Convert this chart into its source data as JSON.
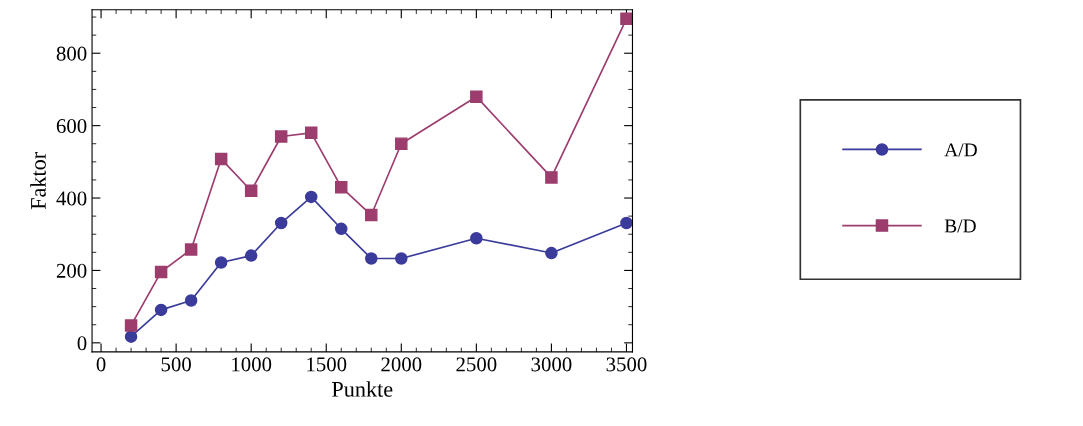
{
  "chart_data": {
    "type": "line",
    "xlabel": "Punkte",
    "ylabel": "Faktor",
    "x": [
      200,
      400,
      600,
      800,
      1000,
      1200,
      1400,
      1600,
      1800,
      2000,
      2500,
      3000,
      3500
    ],
    "series": [
      {
        "name": "A/D",
        "color": "#3b3b9c",
        "marker": "circle",
        "values": [
          17,
          91,
          117,
          222,
          241,
          331,
          403,
          315,
          233,
          233,
          289,
          248,
          331
        ]
      },
      {
        "name": "B/D",
        "color": "#9c3d6e",
        "marker": "square",
        "values": [
          48,
          196,
          258,
          508,
          420,
          570,
          580,
          430,
          353,
          550,
          680,
          457,
          895
        ]
      }
    ],
    "xlim": [
      -60,
      3540
    ],
    "xticks": [
      0,
      500,
      1000,
      1500,
      2000,
      2500,
      3000,
      3500
    ],
    "ylim": [
      -25,
      920
    ],
    "yticks": [
      0,
      200,
      400,
      600,
      800
    ],
    "grid": false,
    "legend": "right",
    "line_style": "solid"
  }
}
